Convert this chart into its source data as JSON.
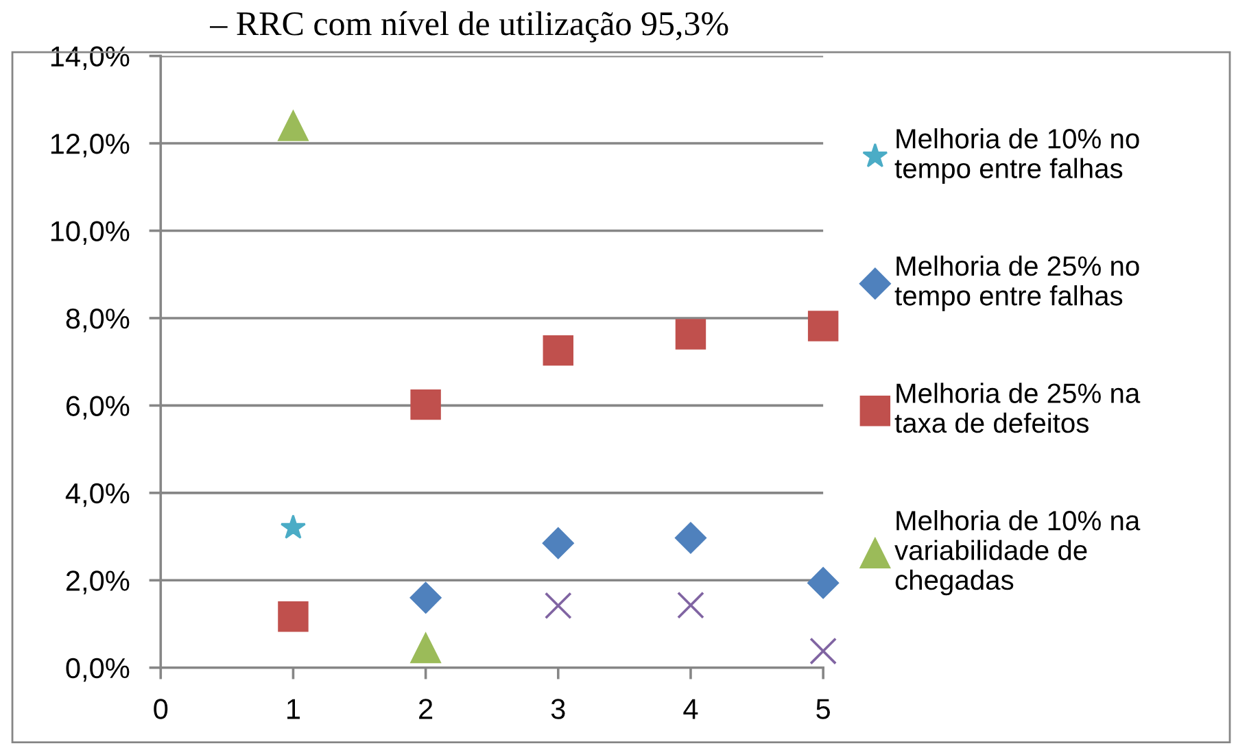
{
  "chart_data": {
    "type": "scatter",
    "title": "– RRC com nível de utilização 95,3%",
    "xlim": [
      0,
      5
    ],
    "xticks": [
      0,
      1,
      2,
      3,
      4,
      5
    ],
    "ylim": [
      0,
      14
    ],
    "yticks": [
      {
        "value": 0,
        "label": "0,0%"
      },
      {
        "value": 2,
        "label": "2,0%"
      },
      {
        "value": 4,
        "label": "4,0%"
      },
      {
        "value": 6,
        "label": "6,0%"
      },
      {
        "value": 8,
        "label": "8,0%"
      },
      {
        "value": 10,
        "label": "10,0%"
      },
      {
        "value": 12,
        "label": "12,0%"
      },
      {
        "value": 14,
        "label": "14,0%"
      }
    ],
    "grid": "y",
    "legend": "right",
    "series": [
      {
        "name": "Melhoria de 10% no tempo entre falhas",
        "color": "#4bacc6",
        "marker": "star",
        "x": [
          1
        ],
        "values": [
          3.2
        ]
      },
      {
        "name": "Melhoria de 25% no tempo entre falhas",
        "color": "#4f81bd",
        "marker": "diamond",
        "x": [
          2,
          3,
          4,
          5
        ],
        "values": [
          1.6,
          2.85,
          2.97,
          1.94
        ]
      },
      {
        "name": "Melhoria de 25% na taxa de defeitos",
        "color": "#c0504d",
        "marker": "square",
        "x": [
          1,
          2,
          3,
          4,
          5
        ],
        "values": [
          1.17,
          6.02,
          7.26,
          7.63,
          7.82
        ]
      },
      {
        "name": "Melhoria de 10% na variabilidade de chegadas",
        "color": "#9bbb59",
        "marker": "triangle",
        "x": [
          1,
          2
        ],
        "values": [
          12.4,
          0.45
        ]
      },
      {
        "color": "#8064a2",
        "marker": "cross",
        "x": [
          3,
          4,
          5
        ],
        "values": [
          1.42,
          1.43,
          0.38
        ]
      }
    ]
  }
}
